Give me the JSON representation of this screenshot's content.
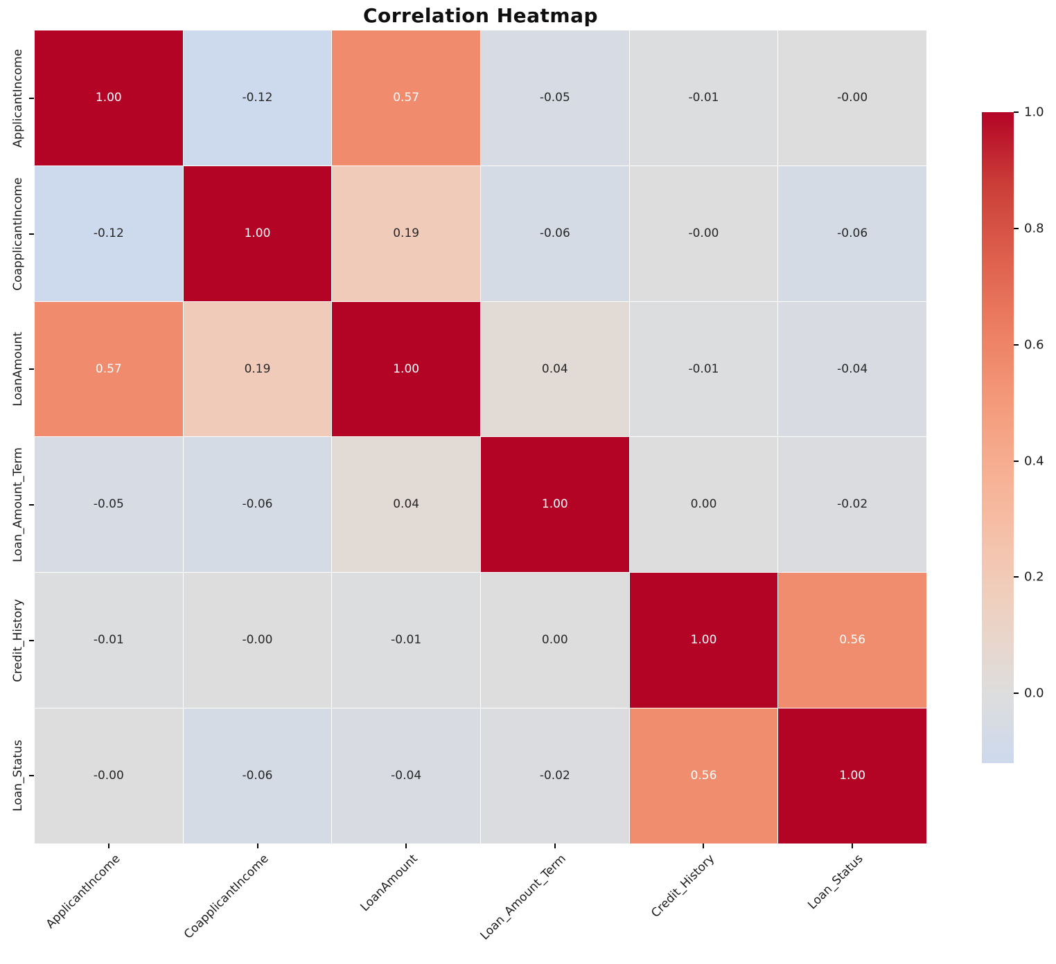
{
  "figure": {
    "title": "Correlation Heatmap"
  },
  "chart_data": {
    "type": "heatmap",
    "title": "Correlation Heatmap",
    "categories": [
      "ApplicantIncome",
      "CoapplicantIncome",
      "LoanAmount",
      "Loan_Amount_Term",
      "Credit_History",
      "Loan_Status"
    ],
    "matrix": [
      [
        1.0,
        -0.12,
        0.57,
        -0.05,
        -0.01,
        -0.0
      ],
      [
        -0.12,
        1.0,
        0.19,
        -0.06,
        -0.0,
        -0.06
      ],
      [
        0.57,
        0.19,
        1.0,
        0.04,
        -0.01,
        -0.04
      ],
      [
        -0.05,
        -0.06,
        0.04,
        1.0,
        0.0,
        -0.02
      ],
      [
        -0.01,
        -0.0,
        -0.01,
        0.0,
        1.0,
        0.56
      ],
      [
        -0.0,
        -0.06,
        -0.04,
        -0.02,
        0.56,
        1.0
      ]
    ],
    "cell_labels": [
      [
        "1.00",
        "-0.12",
        "0.57",
        "-0.05",
        "-0.01",
        "-0.00"
      ],
      [
        "-0.12",
        "1.00",
        "0.19",
        "-0.06",
        "-0.00",
        "-0.06"
      ],
      [
        "0.57",
        "0.19",
        "1.00",
        "0.04",
        "-0.01",
        "-0.04"
      ],
      [
        "-0.05",
        "-0.06",
        "0.04",
        "1.00",
        "0.00",
        "-0.02"
      ],
      [
        "-0.01",
        "-0.00",
        "-0.01",
        "0.00",
        "1.00",
        "0.56"
      ],
      [
        "-0.00",
        "-0.06",
        "-0.04",
        "-0.02",
        "0.56",
        "1.00"
      ]
    ],
    "colormap": {
      "name": "coolwarm",
      "center": 0,
      "vmin": -0.12,
      "vmax": 1.0,
      "anchors": [
        {
          "t": 0.375,
          "color": "#b8d0f9"
        },
        {
          "t": 0.4375,
          "color": "#ccd9ee"
        },
        {
          "t": 0.5,
          "color": "#dddddd"
        },
        {
          "t": 0.5625,
          "color": "#ecd3c5"
        },
        {
          "t": 0.625,
          "color": "#f5c4ad"
        },
        {
          "t": 0.6875,
          "color": "#f7b194"
        },
        {
          "t": 0.75,
          "color": "#f49a7b"
        },
        {
          "t": 0.8125,
          "color": "#ec7f63"
        },
        {
          "t": 0.875,
          "color": "#de604d"
        },
        {
          "t": 0.9375,
          "color": "#cb3e38"
        },
        {
          "t": 1.0,
          "color": "#b40426"
        }
      ]
    },
    "colorbar": {
      "tick_labels": [
        "1.0",
        "0.8",
        "0.6",
        "0.4",
        "0.2",
        "0.0"
      ],
      "tick_values": [
        1.0,
        0.8,
        0.6,
        0.4,
        0.2,
        0.0
      ]
    },
    "text_colors": {
      "dark": "#262626",
      "light": "#ffffff"
    },
    "grid_line_color": "#ffffff",
    "layout": {
      "grid": false,
      "colorbar_position": "right",
      "x_label_rotation": 45,
      "y_label_rotation": 90
    }
  }
}
